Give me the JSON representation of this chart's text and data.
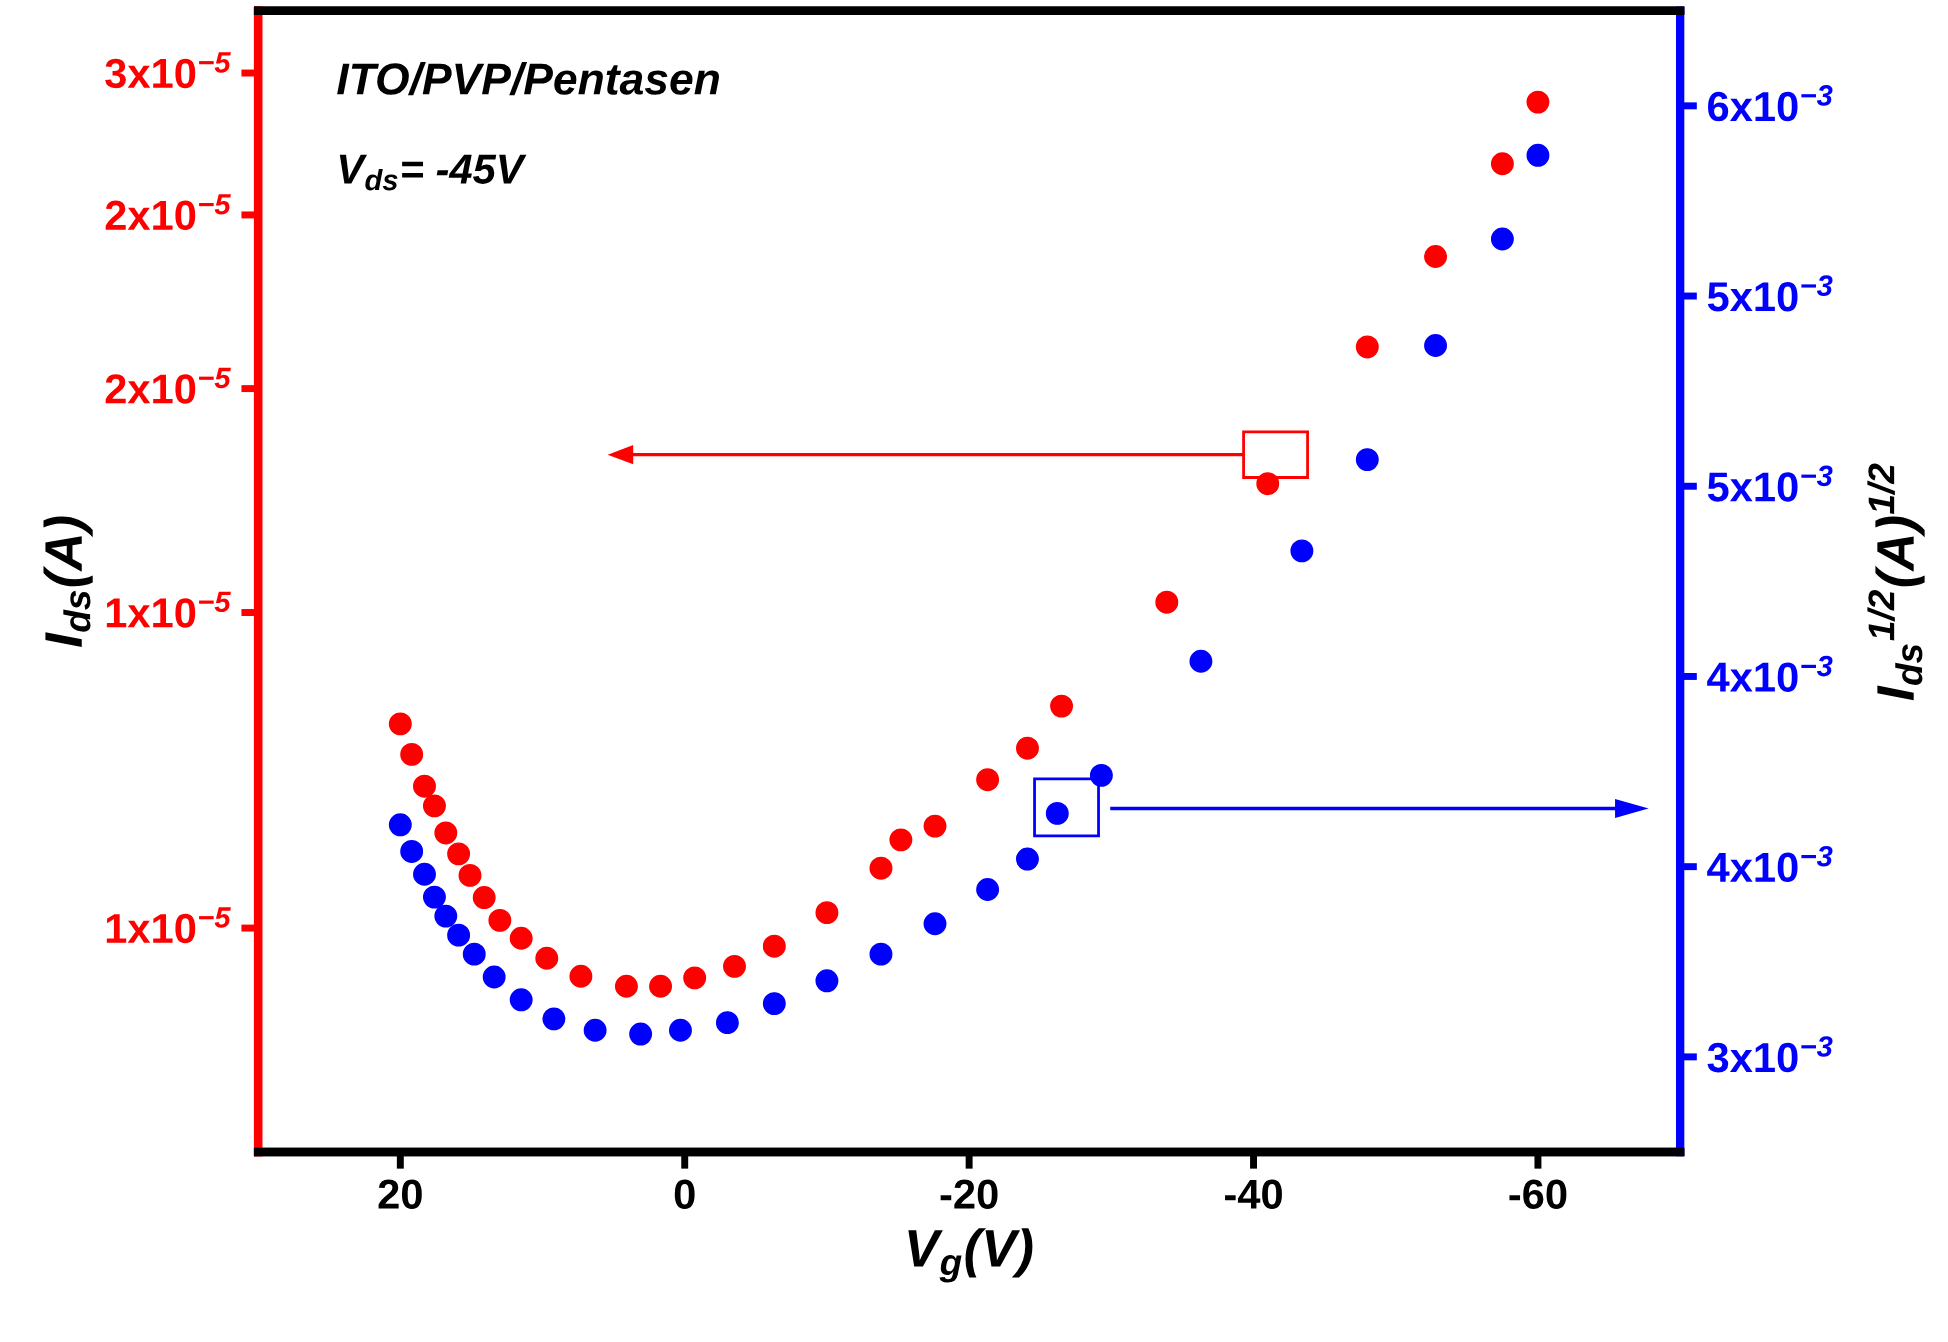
{
  "chart_data": {
    "type": "scatter",
    "xlabel": "V$_{g}$(V)",
    "ylabel": "I$_{ds}$(A)",
    "y2label": "I$_{ds}$$^{1/2}$(A)$^{1/2}$",
    "annotations": [
      "ITO/PVP/Pentasen",
      "V$_{ds}$= -45V"
    ],
    "xlim": [
      30,
      -70
    ],
    "xticks": [
      20,
      0,
      -20,
      -40,
      -60
    ],
    "log": true,
    "ylim": [
      7.5e-06,
      3.25e-05
    ],
    "yticks": [
      {
        "value": 1e-05,
        "label": "1x10$^{−5}$"
      },
      {
        "value": 1.5e-05,
        "label": "1x10$^{−5}$"
      },
      {
        "value": 2e-05,
        "label": "2x10$^{−5}$"
      },
      {
        "value": 2.5e-05,
        "label": "2x10$^{−5}$"
      },
      {
        "value": 3e-05,
        "label": "3x10$^{−5}$"
      }
    ],
    "y2lim": [
      0.00275,
      0.00575
    ],
    "y2ticks": [
      {
        "value": 0.003,
        "label": "3x10$^{−3}$"
      },
      {
        "value": 0.0035,
        "label": "4x10$^{−3}$"
      },
      {
        "value": 0.004,
        "label": "4x10$^{−3}$"
      },
      {
        "value": 0.0045,
        "label": "5x10$^{−3}$"
      },
      {
        "value": 0.005,
        "label": "5x10$^{−3}$"
      },
      {
        "value": 0.0055,
        "label": "6x10$^{−3}$"
      }
    ],
    "grid": false,
    "legend": false,
    "marker": "circle",
    "series": [
      {
        "color": "#ff0000",
        "x": [
          20,
          19.2,
          18.3,
          17.6,
          16.8,
          15.9,
          15.1,
          14.1,
          13.0,
          11.5,
          9.7,
          7.3,
          4.1,
          1.7,
          -0.7,
          -3.5,
          -6.3,
          -10.0,
          -13.8,
          -15.2,
          -17.6,
          -21.3,
          -24.1,
          -26.5,
          -33.9,
          -41.0,
          -48.0,
          -52.8,
          -57.5,
          -60
        ],
        "values": [
          1.3e-05,
          1.25e-05,
          1.2e-05,
          1.17e-05,
          1.13e-05,
          1.1e-05,
          1.07e-05,
          1.04e-05,
          1.01e-05,
          9.87e-06,
          9.62e-06,
          9.4e-06,
          9.28e-06,
          9.28e-06,
          9.38e-06,
          9.52e-06,
          9.77e-06,
          1.02e-05,
          1.08e-05,
          1.12e-05,
          1.14e-05,
          1.21e-05,
          1.26e-05,
          1.33e-05,
          1.52e-05,
          1.77e-05,
          2.11e-05,
          2.37e-05,
          2.67e-05,
          2.89e-05
        ]
      },
      {
        "color": "#0000ff",
        "axis": "y2",
        "x": [
          20,
          19.2,
          18.3,
          17.6,
          16.8,
          15.9,
          14.8,
          13.4,
          11.5,
          9.2,
          6.3,
          3.1,
          0.3,
          -3.0,
          -6.3,
          -10.0,
          -13.8,
          -17.6,
          -21.3,
          -24.1,
          -26.2,
          -29.3,
          -36.3,
          -43.4,
          -48.0,
          -52.8,
          -57.5,
          -60
        ],
        "values": [
          0.00361,
          0.00354,
          0.00348,
          0.00342,
          0.00337,
          0.00332,
          0.00327,
          0.00321,
          0.00315,
          0.0031,
          0.00307,
          0.00306,
          0.00307,
          0.00309,
          0.00314,
          0.0032,
          0.00327,
          0.00335,
          0.00344,
          0.00352,
          0.00364,
          0.00374,
          0.00404,
          0.00433,
          0.00457,
          0.00487,
          0.00515,
          0.00537
        ]
      }
    ]
  }
}
